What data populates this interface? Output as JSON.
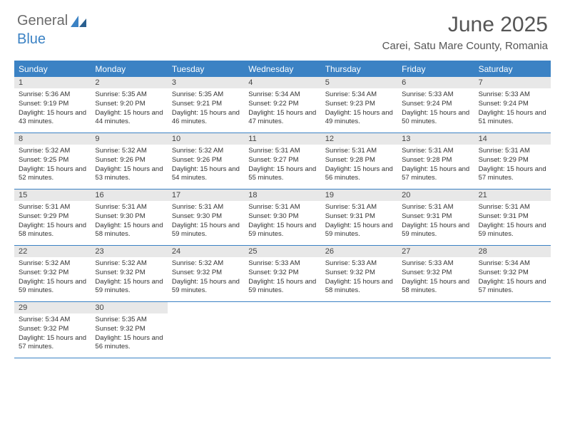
{
  "logo": {
    "word1": "General",
    "word2": "Blue"
  },
  "title": "June 2025",
  "location": "Carei, Satu Mare County, Romania",
  "colors": {
    "accent": "#3b82c4",
    "header_bg": "#3b82c4",
    "daynum_bg": "#e8e8e8",
    "text": "#333333",
    "title_text": "#555555"
  },
  "weekdays": [
    "Sunday",
    "Monday",
    "Tuesday",
    "Wednesday",
    "Thursday",
    "Friday",
    "Saturday"
  ],
  "labels": {
    "sunrise": "Sunrise:",
    "sunset": "Sunset:",
    "daylight": "Daylight:"
  },
  "weeks": [
    [
      {
        "n": "1",
        "sr": "5:36 AM",
        "ss": "9:19 PM",
        "dl": "15 hours and 43 minutes."
      },
      {
        "n": "2",
        "sr": "5:35 AM",
        "ss": "9:20 PM",
        "dl": "15 hours and 44 minutes."
      },
      {
        "n": "3",
        "sr": "5:35 AM",
        "ss": "9:21 PM",
        "dl": "15 hours and 46 minutes."
      },
      {
        "n": "4",
        "sr": "5:34 AM",
        "ss": "9:22 PM",
        "dl": "15 hours and 47 minutes."
      },
      {
        "n": "5",
        "sr": "5:34 AM",
        "ss": "9:23 PM",
        "dl": "15 hours and 49 minutes."
      },
      {
        "n": "6",
        "sr": "5:33 AM",
        "ss": "9:24 PM",
        "dl": "15 hours and 50 minutes."
      },
      {
        "n": "7",
        "sr": "5:33 AM",
        "ss": "9:24 PM",
        "dl": "15 hours and 51 minutes."
      }
    ],
    [
      {
        "n": "8",
        "sr": "5:32 AM",
        "ss": "9:25 PM",
        "dl": "15 hours and 52 minutes."
      },
      {
        "n": "9",
        "sr": "5:32 AM",
        "ss": "9:26 PM",
        "dl": "15 hours and 53 minutes."
      },
      {
        "n": "10",
        "sr": "5:32 AM",
        "ss": "9:26 PM",
        "dl": "15 hours and 54 minutes."
      },
      {
        "n": "11",
        "sr": "5:31 AM",
        "ss": "9:27 PM",
        "dl": "15 hours and 55 minutes."
      },
      {
        "n": "12",
        "sr": "5:31 AM",
        "ss": "9:28 PM",
        "dl": "15 hours and 56 minutes."
      },
      {
        "n": "13",
        "sr": "5:31 AM",
        "ss": "9:28 PM",
        "dl": "15 hours and 57 minutes."
      },
      {
        "n": "14",
        "sr": "5:31 AM",
        "ss": "9:29 PM",
        "dl": "15 hours and 57 minutes."
      }
    ],
    [
      {
        "n": "15",
        "sr": "5:31 AM",
        "ss": "9:29 PM",
        "dl": "15 hours and 58 minutes."
      },
      {
        "n": "16",
        "sr": "5:31 AM",
        "ss": "9:30 PM",
        "dl": "15 hours and 58 minutes."
      },
      {
        "n": "17",
        "sr": "5:31 AM",
        "ss": "9:30 PM",
        "dl": "15 hours and 59 minutes."
      },
      {
        "n": "18",
        "sr": "5:31 AM",
        "ss": "9:30 PM",
        "dl": "15 hours and 59 minutes."
      },
      {
        "n": "19",
        "sr": "5:31 AM",
        "ss": "9:31 PM",
        "dl": "15 hours and 59 minutes."
      },
      {
        "n": "20",
        "sr": "5:31 AM",
        "ss": "9:31 PM",
        "dl": "15 hours and 59 minutes."
      },
      {
        "n": "21",
        "sr": "5:31 AM",
        "ss": "9:31 PM",
        "dl": "15 hours and 59 minutes."
      }
    ],
    [
      {
        "n": "22",
        "sr": "5:32 AM",
        "ss": "9:32 PM",
        "dl": "15 hours and 59 minutes."
      },
      {
        "n": "23",
        "sr": "5:32 AM",
        "ss": "9:32 PM",
        "dl": "15 hours and 59 minutes."
      },
      {
        "n": "24",
        "sr": "5:32 AM",
        "ss": "9:32 PM",
        "dl": "15 hours and 59 minutes."
      },
      {
        "n": "25",
        "sr": "5:33 AM",
        "ss": "9:32 PM",
        "dl": "15 hours and 59 minutes."
      },
      {
        "n": "26",
        "sr": "5:33 AM",
        "ss": "9:32 PM",
        "dl": "15 hours and 58 minutes."
      },
      {
        "n": "27",
        "sr": "5:33 AM",
        "ss": "9:32 PM",
        "dl": "15 hours and 58 minutes."
      },
      {
        "n": "28",
        "sr": "5:34 AM",
        "ss": "9:32 PM",
        "dl": "15 hours and 57 minutes."
      }
    ],
    [
      {
        "n": "29",
        "sr": "5:34 AM",
        "ss": "9:32 PM",
        "dl": "15 hours and 57 minutes."
      },
      {
        "n": "30",
        "sr": "5:35 AM",
        "ss": "9:32 PM",
        "dl": "15 hours and 56 minutes."
      },
      null,
      null,
      null,
      null,
      null
    ]
  ]
}
